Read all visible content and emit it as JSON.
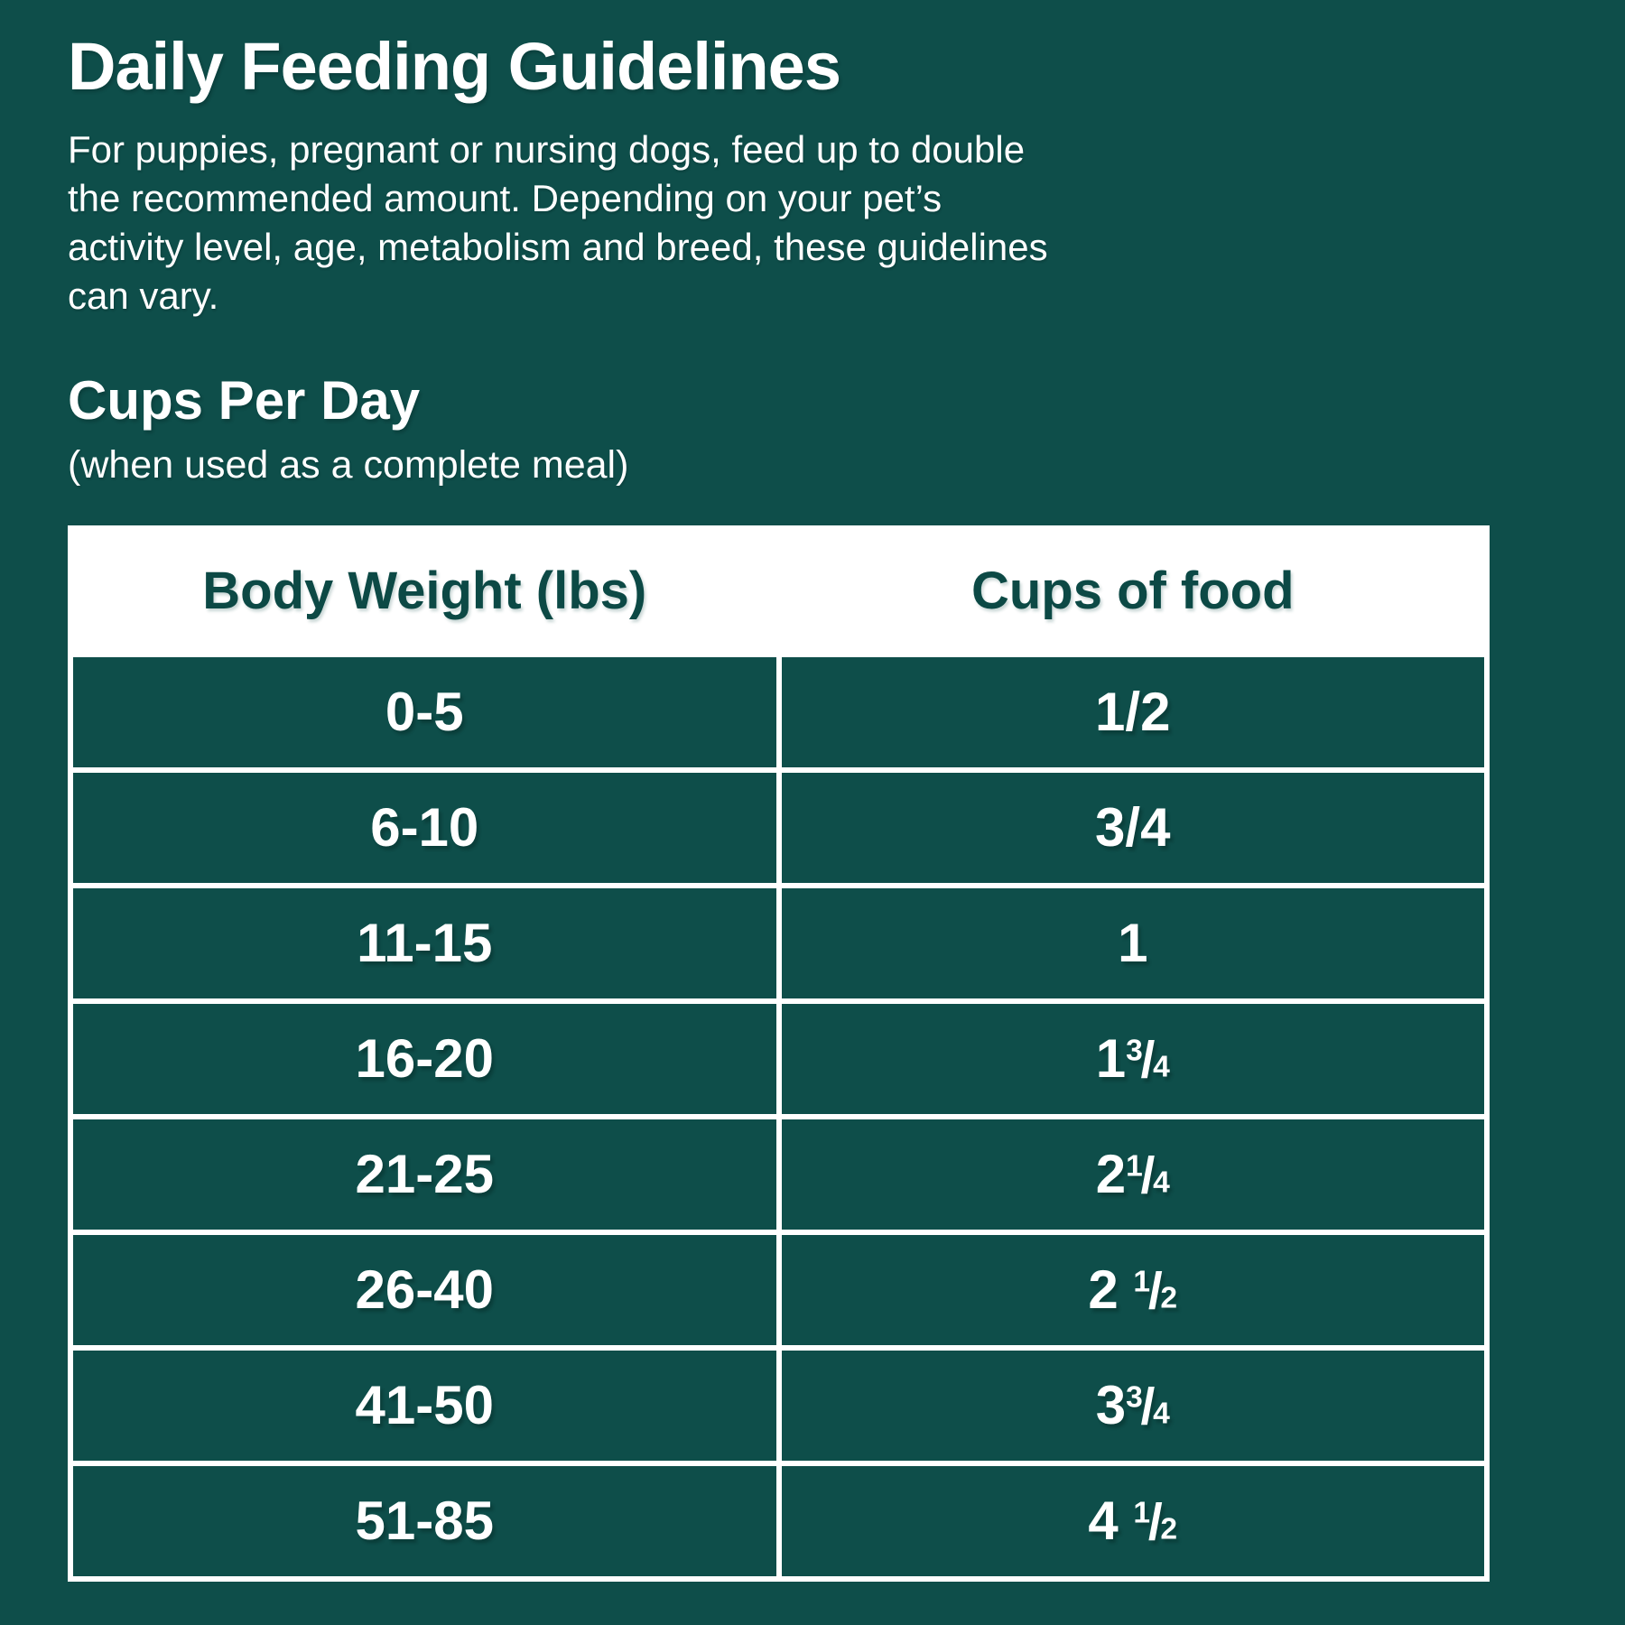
{
  "colors": {
    "background": "#0E4E4A",
    "table_border": "#FFFFFF",
    "header_bg": "#FFFFFF",
    "header_text": "#0C4945",
    "row_bg": "#0E4E4A",
    "row_text": "#FFFFFF"
  },
  "heading": {
    "title": "Daily Feeding Guidelines"
  },
  "intro_lines": [
    "For puppies, pregnant or nursing dogs, feed up to double",
    "the recommended amount. Depending on your pet’s",
    "activity level, age, metabolism and breed, these guidelines",
    "can vary."
  ],
  "section": {
    "heading": "Cups Per Day",
    "subheading": "(when used as a complete meal)"
  },
  "table": {
    "columns": [
      "Body Weight (lbs)",
      "Cups of food"
    ],
    "rows": [
      {
        "weight": "0-5",
        "cups_big": "1/2",
        "cups_small": ""
      },
      {
        "weight": "6-10",
        "cups_big": "3/4",
        "cups_small": ""
      },
      {
        "weight": "11-15",
        "cups_big": "1",
        "cups_small": ""
      },
      {
        "weight": "16-20",
        "cups_big": "1",
        "cups_small": "3/4"
      },
      {
        "weight": "21-25",
        "cups_big": "2",
        "cups_small": "1/4"
      },
      {
        "weight": "26-40",
        "cups_big": "2",
        "cups_small": " 1/2"
      },
      {
        "weight": "41-50",
        "cups_big": "3",
        "cups_small": "3/4"
      },
      {
        "weight": "51-85",
        "cups_big": "4",
        "cups_small": " 1/2"
      }
    ]
  }
}
